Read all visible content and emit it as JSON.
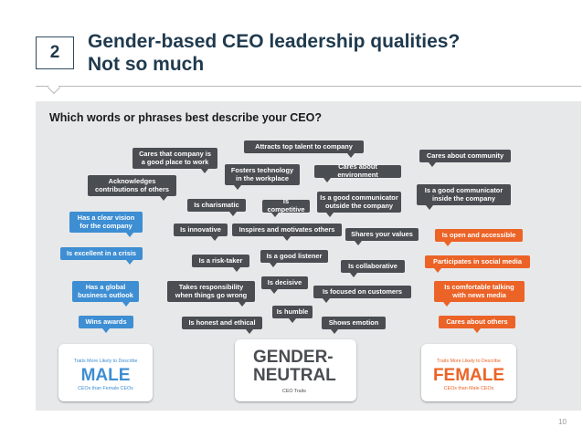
{
  "header": {
    "number": "2",
    "title_line1": "Gender-based CEO leadership qualities?",
    "title_line2": "Not so much"
  },
  "question": "Which words or phrases best describe your CEO?",
  "colors": {
    "male": "#3d8ed3",
    "female": "#ec6327",
    "neutral": "#4a4d51",
    "title": "#1f3a4e",
    "panel": "#e7e8e9"
  },
  "male_traits": [
    "Has a clear vision\nfor the company",
    "Is excellent in a crisis",
    "Has a global\nbusiness outlook",
    "Wins awards"
  ],
  "neutral_traits": [
    "Cares that company is\na good place to work",
    "Attracts top talent to company",
    "Cares about community",
    "Acknowledges\ncontributions of others",
    "Fosters technology\nin the workplace",
    "Cares about environment",
    "Is a good communicator\ninside the company",
    "Is charismatic",
    "Is competitive",
    "Is a good communicator\noutside the company",
    "Is innovative",
    "Inspires and motivates others",
    "Shares your values",
    "Is a risk-taker",
    "Is a good listener",
    "Is collaborative",
    "Takes responsibility\nwhen things go wrong",
    "Is decisive",
    "Is focused on customers",
    "Is humble",
    "Is honest and ethical",
    "Shows emotion"
  ],
  "female_traits": [
    "Is open and accessible",
    "Participates in social media",
    "Is comfortable talking\nwith news media",
    "Cares about others"
  ],
  "cards": {
    "male": {
      "top": "Traits More Likely to Describe",
      "big": "MALE",
      "sub": "CEOs than Female CEOs"
    },
    "neutral": {
      "big1": "GENDER-",
      "big2": "NEUTRAL",
      "sub": "CEO Traits"
    },
    "female": {
      "top": "Traits More Likely to Describe",
      "big": "FEMALE",
      "sub": "CEOs than Male CEOs"
    }
  },
  "page_number": "10"
}
